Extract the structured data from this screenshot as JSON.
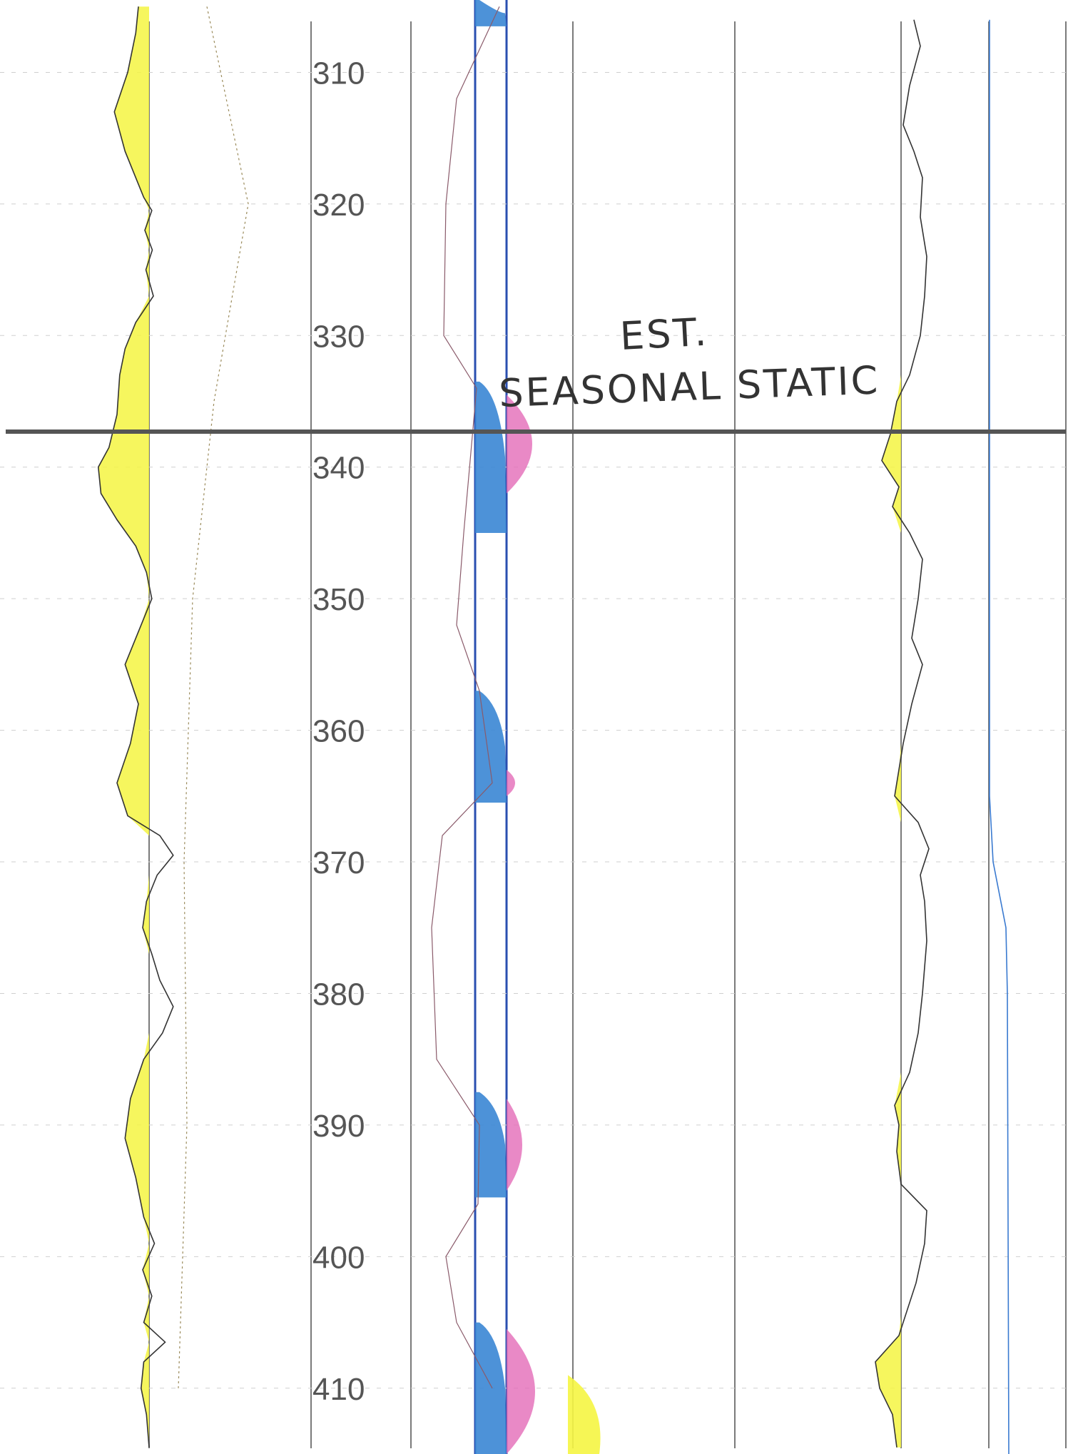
{
  "chart_data": {
    "type": "line",
    "title": "",
    "xlabel": "",
    "ylabel": "",
    "depth_range": [
      304.5,
      415.0
    ],
    "depth_ticks": [
      310,
      320,
      330,
      340,
      350,
      360,
      370,
      380,
      390,
      400,
      410
    ],
    "marker_depth": 337.3,
    "annotation_lines": [
      "EST.",
      "SEASONAL STATIC"
    ],
    "tracks": [
      {
        "name": "",
        "kind": "gamma-left",
        "fill_color": "#f5f542",
        "curve_color": "#333333",
        "profile": [
          [
            305.0,
            0.2
          ],
          [
            307.0,
            0.25
          ],
          [
            310.0,
            0.4
          ],
          [
            313.0,
            0.65
          ],
          [
            316.0,
            0.45
          ],
          [
            319.5,
            0.1
          ],
          [
            320.5,
            -0.05
          ],
          [
            322.0,
            0.08
          ],
          [
            323.5,
            -0.06
          ],
          [
            325.0,
            0.06
          ],
          [
            327.0,
            -0.08
          ],
          [
            329.0,
            0.25
          ],
          [
            331.0,
            0.45
          ],
          [
            333.0,
            0.55
          ],
          [
            336.0,
            0.6
          ],
          [
            338.5,
            0.75
          ],
          [
            340.0,
            0.95
          ],
          [
            342.0,
            0.9
          ],
          [
            344.0,
            0.6
          ],
          [
            346.0,
            0.25
          ],
          [
            348.0,
            0.05
          ],
          [
            350.0,
            -0.05
          ],
          [
            352.0,
            0.15
          ],
          [
            355.0,
            0.45
          ],
          [
            358.0,
            0.2
          ],
          [
            361.0,
            0.35
          ],
          [
            364.0,
            0.6
          ],
          [
            366.5,
            0.4
          ],
          [
            368.0,
            -0.2
          ],
          [
            369.5,
            -0.45
          ],
          [
            371.0,
            -0.15
          ],
          [
            373.0,
            0.05
          ],
          [
            375.0,
            0.12
          ],
          [
            377.0,
            -0.05
          ],
          [
            379.0,
            -0.2
          ],
          [
            381.0,
            -0.45
          ],
          [
            383.0,
            -0.25
          ],
          [
            385.0,
            0.1
          ],
          [
            388.0,
            0.35
          ],
          [
            391.0,
            0.45
          ],
          [
            394.0,
            0.25
          ],
          [
            397.0,
            0.1
          ],
          [
            399.0,
            -0.1
          ],
          [
            401.0,
            0.12
          ],
          [
            403.0,
            -0.05
          ],
          [
            405.0,
            0.1
          ],
          [
            406.5,
            -0.3
          ],
          [
            408.0,
            0.1
          ],
          [
            410.0,
            0.15
          ],
          [
            412.0,
            0.05
          ],
          [
            414.5,
            0.0
          ]
        ]
      },
      {
        "name": "",
        "kind": "resistivity",
        "fill_color": "#3a86d4",
        "fill_color_2": "#e36bb8",
        "curve_color": "#555555",
        "blue_intervals": [
          [
            304.5,
            306.5
          ],
          [
            333.5,
            345.0
          ],
          [
            357.0,
            365.5
          ],
          [
            387.5,
            395.5
          ],
          [
            405.0,
            415.0
          ]
        ],
        "pink_intervals": [
          [
            334.5,
            342.0,
            0.9
          ],
          [
            363.0,
            365.0,
            0.3
          ],
          [
            388.0,
            395.0,
            0.55
          ],
          [
            405.5,
            415.0,
            1.0
          ]
        ],
        "yellow_interval": [
          409.0,
          415.0
        ]
      },
      {
        "name": "",
        "kind": "gamma-right",
        "fill_color": "#f5f542",
        "curve_color": "#333333",
        "profile": [
          [
            306.0,
            -0.3
          ],
          [
            308.0,
            -0.45
          ],
          [
            311.0,
            -0.2
          ],
          [
            314.0,
            -0.05
          ],
          [
            316.0,
            -0.3
          ],
          [
            318.0,
            -0.5
          ],
          [
            321.0,
            -0.45
          ],
          [
            324.0,
            -0.6
          ],
          [
            327.0,
            -0.55
          ],
          [
            330.0,
            -0.45
          ],
          [
            333.0,
            -0.2
          ],
          [
            335.0,
            0.1
          ],
          [
            337.5,
            0.25
          ],
          [
            339.5,
            0.45
          ],
          [
            341.5,
            0.05
          ],
          [
            343.0,
            0.2
          ],
          [
            345.0,
            -0.2
          ],
          [
            347.0,
            -0.5
          ],
          [
            350.0,
            -0.4
          ],
          [
            353.0,
            -0.25
          ],
          [
            355.0,
            -0.5
          ],
          [
            358.0,
            -0.25
          ],
          [
            361.0,
            -0.05
          ],
          [
            363.0,
            0.05
          ],
          [
            365.0,
            0.15
          ],
          [
            367.0,
            -0.4
          ],
          [
            369.0,
            -0.65
          ],
          [
            371.0,
            -0.45
          ],
          [
            373.0,
            -0.55
          ],
          [
            376.0,
            -0.6
          ],
          [
            380.0,
            -0.5
          ],
          [
            383.0,
            -0.4
          ],
          [
            386.0,
            -0.2
          ],
          [
            388.5,
            0.15
          ],
          [
            390.0,
            0.05
          ],
          [
            392.0,
            0.1
          ],
          [
            394.5,
            0.0
          ],
          [
            396.5,
            -0.6
          ],
          [
            399.0,
            -0.55
          ],
          [
            402.0,
            -0.35
          ],
          [
            404.5,
            -0.1
          ],
          [
            406.0,
            0.05
          ],
          [
            408.0,
            0.6
          ],
          [
            410.0,
            0.5
          ],
          [
            412.0,
            0.2
          ],
          [
            414.5,
            0.1
          ]
        ]
      }
    ]
  }
}
